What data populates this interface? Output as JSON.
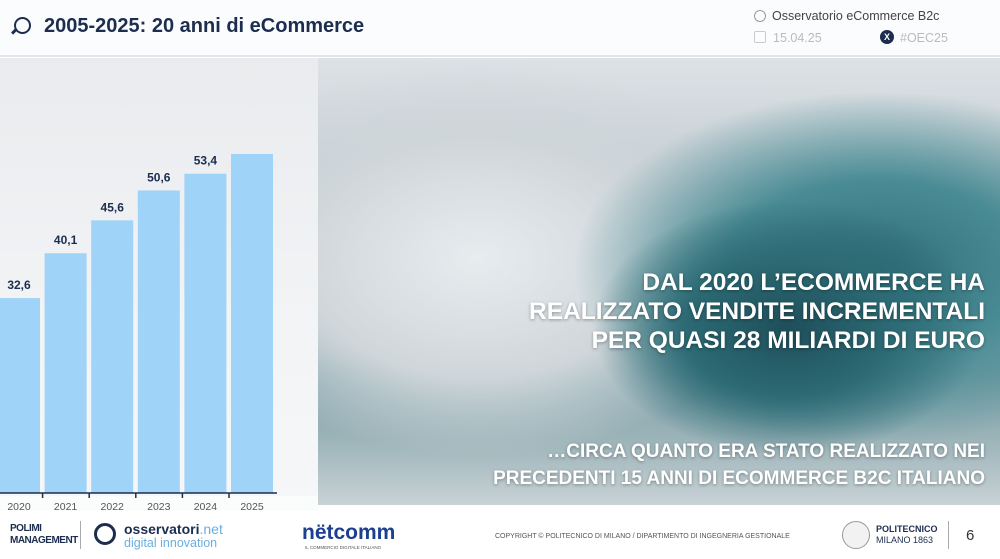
{
  "header": {
    "title": "2005-2025: 20 anni di eCommerce",
    "observatory": "Osservatorio eCommerce B2c",
    "date": "15.04.25",
    "hashtag": "#OEC25"
  },
  "chart_data": {
    "type": "bar",
    "categories": [
      "2020",
      "2021",
      "2022",
      "2023",
      "2024",
      "2025"
    ],
    "values": [
      32.6,
      40.1,
      45.6,
      50.6,
      53.4,
      56.7
    ],
    "data_labels": [
      "32,6",
      "40,1",
      "45,6",
      "50,6",
      "53,4",
      ""
    ],
    "ylim": [
      0,
      60
    ],
    "grid": false,
    "color": "#9fd3f7",
    "label_color": "#1c2d4f"
  },
  "main": {
    "headline": [
      "DAL 2020 L’ECOMMERCE HA",
      "REALIZZATO VENDITE INCREMENTALI",
      "PER QUASI 28 MILIARDI DI EURO"
    ],
    "subline": [
      "…CIRCA QUANTO ERA STATO REALIZZATO NEI",
      "PRECEDENTI 15 ANNI DI ECOMMERCE B2C ITALIANO"
    ]
  },
  "footer": {
    "polimi": "POLIMI",
    "polimi_sub": "MANAGEMENT",
    "observatori_name": "osservatori",
    "observatori_tld": ".net",
    "observatori_sub": "digital innovation",
    "netcomm": "nëtcomm",
    "netcomm_sub": "IL COMMERCIO DIGITALE ITALIANO",
    "copyright": "COPYRIGHT © POLITECNICO DI MILANO / DIPARTIMENTO DI INGEGNERIA GESTIONALE",
    "politecnico": "POLITECNICO",
    "politecnico_sub": "MILANO 1863",
    "page": "6"
  }
}
